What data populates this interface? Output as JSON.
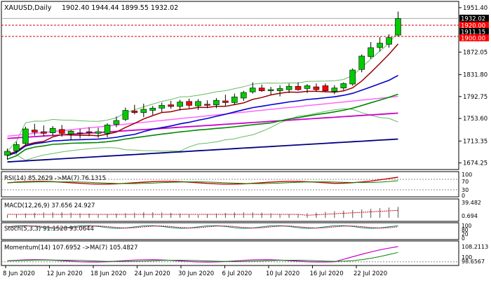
{
  "header": {
    "symbol_line": "XAUUSD,Daily",
    "ohlc_line": "1902.40 1944.44 1899.55 1932.02"
  },
  "price_panel": {
    "y_ticks": [
      "1951.40",
      "1872.05",
      "1831.80",
      "1792.75",
      "1753.60",
      "1713.35",
      "1674.25"
    ],
    "y_tick_values": [
      1951.4,
      1872.05,
      1831.8,
      1792.75,
      1753.6,
      1713.35,
      1674.25
    ],
    "price_tags": [
      {
        "label": "1932.02",
        "value": 1932.02,
        "bg": "#000000",
        "fg": "#ffffff"
      },
      {
        "label": "1920.00",
        "value": 1920.0,
        "bg": "#ff0000",
        "fg": "#ffffff"
      },
      {
        "label": "1911.15",
        "value": 1911.15,
        "bg": "#000000",
        "fg": "#ffffff"
      },
      {
        "label": "1900.00",
        "value": 1900.0,
        "bg": "#ff0000",
        "fg": "#ffffff"
      }
    ],
    "resistance_levels": [
      1920.0,
      1900.0
    ]
  },
  "rsi_panel": {
    "label": "RSI(14) 85.2629  ->MA(7) 76.1315",
    "y_ticks": [
      "100",
      "70",
      "30",
      "0"
    ]
  },
  "macd_panel": {
    "label": "MACD(12,26,9) 37.656 24.927",
    "y_ticks": [
      "39.482",
      "0.694"
    ]
  },
  "stoch_panel": {
    "label": "Stoch(5,3,3) 91.1528 93.0644",
    "y_ticks": [
      "100",
      "80",
      "20",
      "0"
    ]
  },
  "momentum_panel": {
    "label": "Momentum(14) 107.6952  ->MA(7) 105.4827",
    "y_ticks": [
      "108.2113",
      "100",
      "98.6567"
    ]
  },
  "x_axis": {
    "labels": [
      "8 Jun 2020",
      "12 Jun 2020",
      "18 Jun 2020",
      "24 Jun 2020",
      "30 Jun 2020",
      "6 Jul 2020",
      "10 Jul 2020",
      "16 Jul 2020",
      "22 Jul 2020"
    ]
  },
  "colors": {
    "bull_candle": "#00cc00",
    "bear_candle": "#ff0000",
    "ma_fast": "#990000",
    "ma_mid": "#0000cc",
    "ma_green": "#008800",
    "ma_pink": "#ff66ff",
    "ma_magenta": "#cc00cc",
    "ma_slow": "#000080",
    "bollinger": "#66bb66"
  },
  "chart_data": {
    "type": "candlestick",
    "symbol": "XAUUSD",
    "timeframe": "Daily",
    "candles": [
      {
        "o": 1688,
        "h": 1700,
        "l": 1680,
        "c": 1695
      },
      {
        "o": 1696,
        "h": 1712,
        "l": 1691,
        "c": 1707
      },
      {
        "o": 1709,
        "h": 1739,
        "l": 1706,
        "c": 1735
      },
      {
        "o": 1733,
        "h": 1744,
        "l": 1723,
        "c": 1729
      },
      {
        "o": 1730,
        "h": 1741,
        "l": 1722,
        "c": 1727
      },
      {
        "o": 1728,
        "h": 1740,
        "l": 1723,
        "c": 1736
      },
      {
        "o": 1734,
        "h": 1742,
        "l": 1721,
        "c": 1727
      },
      {
        "o": 1726,
        "h": 1733,
        "l": 1715,
        "c": 1731
      },
      {
        "o": 1728,
        "h": 1735,
        "l": 1718,
        "c": 1727
      },
      {
        "o": 1730,
        "h": 1738,
        "l": 1722,
        "c": 1728
      },
      {
        "o": 1727,
        "h": 1737,
        "l": 1719,
        "c": 1730
      },
      {
        "o": 1727,
        "h": 1745,
        "l": 1720,
        "c": 1742
      },
      {
        "o": 1743,
        "h": 1757,
        "l": 1738,
        "c": 1750
      },
      {
        "o": 1752,
        "h": 1773,
        "l": 1749,
        "c": 1768
      },
      {
        "o": 1767,
        "h": 1778,
        "l": 1761,
        "c": 1764
      },
      {
        "o": 1764,
        "h": 1780,
        "l": 1756,
        "c": 1770
      },
      {
        "o": 1768,
        "h": 1776,
        "l": 1760,
        "c": 1772
      },
      {
        "o": 1772,
        "h": 1782,
        "l": 1765,
        "c": 1777
      },
      {
        "o": 1778,
        "h": 1785,
        "l": 1771,
        "c": 1775
      },
      {
        "o": 1775,
        "h": 1787,
        "l": 1768,
        "c": 1783
      },
      {
        "o": 1784,
        "h": 1789,
        "l": 1772,
        "c": 1777
      },
      {
        "o": 1776,
        "h": 1788,
        "l": 1769,
        "c": 1784
      },
      {
        "o": 1779,
        "h": 1786,
        "l": 1772,
        "c": 1777
      },
      {
        "o": 1778,
        "h": 1790,
        "l": 1772,
        "c": 1786
      },
      {
        "o": 1785,
        "h": 1796,
        "l": 1776,
        "c": 1782
      },
      {
        "o": 1782,
        "h": 1798,
        "l": 1778,
        "c": 1792
      },
      {
        "o": 1790,
        "h": 1803,
        "l": 1785,
        "c": 1800
      },
      {
        "o": 1801,
        "h": 1818,
        "l": 1798,
        "c": 1808
      },
      {
        "o": 1808,
        "h": 1814,
        "l": 1801,
        "c": 1803
      },
      {
        "o": 1803,
        "h": 1810,
        "l": 1796,
        "c": 1805
      },
      {
        "o": 1803,
        "h": 1813,
        "l": 1793,
        "c": 1807
      },
      {
        "o": 1805,
        "h": 1816,
        "l": 1799,
        "c": 1811
      },
      {
        "o": 1811,
        "h": 1818,
        "l": 1803,
        "c": 1805
      },
      {
        "o": 1807,
        "h": 1815,
        "l": 1799,
        "c": 1812
      },
      {
        "o": 1810,
        "h": 1816,
        "l": 1801,
        "c": 1805
      },
      {
        "o": 1812,
        "h": 1816,
        "l": 1801,
        "c": 1803
      },
      {
        "o": 1802,
        "h": 1813,
        "l": 1797,
        "c": 1808
      },
      {
        "o": 1808,
        "h": 1818,
        "l": 1804,
        "c": 1816
      },
      {
        "o": 1815,
        "h": 1843,
        "l": 1812,
        "c": 1840
      },
      {
        "o": 1841,
        "h": 1868,
        "l": 1836,
        "c": 1865
      },
      {
        "o": 1864,
        "h": 1890,
        "l": 1860,
        "c": 1880
      },
      {
        "o": 1880,
        "h": 1899,
        "l": 1873,
        "c": 1888
      },
      {
        "o": 1886,
        "h": 1904,
        "l": 1880,
        "c": 1898
      },
      {
        "o": 1902.4,
        "h": 1944.44,
        "l": 1899.55,
        "c": 1932.02
      }
    ],
    "x_tick_labels": [
      "8 Jun 2020",
      "12 Jun 2020",
      "18 Jun 2020",
      "24 Jun 2020",
      "30 Jun 2020",
      "6 Jul 2020",
      "10 Jul 2020",
      "16 Jul 2020",
      "22 Jul 2020"
    ],
    "y_ticks": [
      1951.4,
      1872.05,
      1831.8,
      1792.75,
      1753.6,
      1713.35,
      1674.25
    ],
    "ylim": [
      1665,
      1960
    ]
  }
}
